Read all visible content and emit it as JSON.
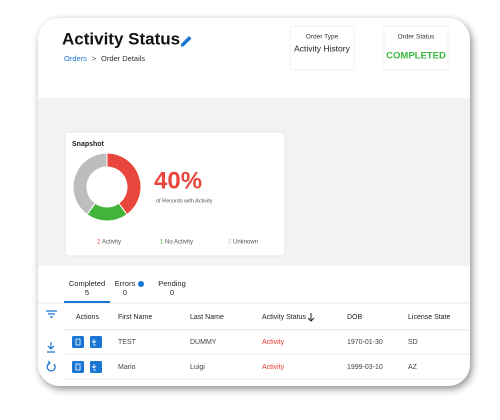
{
  "header": {
    "title": "Activity Status",
    "breadcrumb": [
      "Orders",
      ">",
      "Order Details"
    ]
  },
  "order_type": {
    "label": "Order Type",
    "value": "Activity History"
  },
  "order_status": {
    "label": "Order Status",
    "value": "COMPLETED"
  },
  "snapshot": {
    "title": "Snapshot",
    "percent": "40%",
    "caption": "of Records with Activity",
    "segments": [
      {
        "name": "Activity",
        "count": 2,
        "color": "#e8453c"
      },
      {
        "name": "No Activity",
        "count": 1,
        "color": "#43b43a"
      },
      {
        "name": "Unknown",
        "count": 2,
        "color": "#bdbdbd"
      }
    ]
  },
  "tabs": [
    {
      "label": "Completed",
      "count": 5
    },
    {
      "label": "Errors",
      "count": 0
    },
    {
      "label": "Pending",
      "count": 0
    }
  ],
  "table": {
    "columns": [
      "Actions",
      "First Name",
      "Last Name",
      "Activity Status",
      "DOB",
      "License State"
    ],
    "rows": [
      [
        "TEST",
        "DUMMY",
        "Activity",
        "1970-01-30",
        "SD"
      ],
      [
        "Mario",
        "Luigi",
        "Activity",
        "1999-03-10",
        "AZ"
      ]
    ]
  }
}
